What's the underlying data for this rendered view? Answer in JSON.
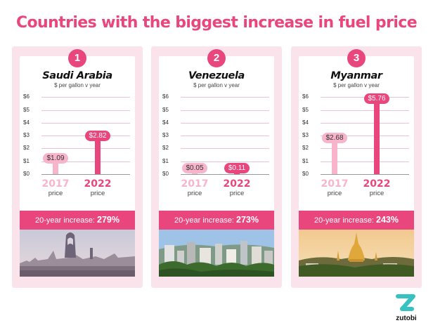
{
  "title": "Countries with the biggest increase in fuel price",
  "unit_label": "$ per gallon v year",
  "price_label": "price",
  "increase_label": "20-year increase:",
  "brand": "zutobi",
  "colors": {
    "accent": "#e8467c",
    "light_pink": "#f7b4cb",
    "card_bg": "#fbe3ec"
  },
  "chart_data": [
    {
      "type": "bar",
      "rank": "1",
      "title": "Saudi Arabia",
      "ylabel": "$ per gallon v year",
      "categories": [
        "2017",
        "2022"
      ],
      "values": [
        1.09,
        2.82
      ],
      "value_labels": [
        "$1.09",
        "$2.82"
      ],
      "ylim": [
        0,
        6
      ],
      "yticks": [
        "$0",
        "$1",
        "$2",
        "$3",
        "$4",
        "$5",
        "$6"
      ],
      "increase": "279%",
      "grid": true
    },
    {
      "type": "bar",
      "rank": "2",
      "title": "Venezuela",
      "ylabel": "$ per gallon v year",
      "categories": [
        "2017",
        "2022"
      ],
      "values": [
        0.05,
        0.11
      ],
      "value_labels": [
        "$0.05",
        "$0.11"
      ],
      "ylim": [
        0,
        6
      ],
      "yticks": [
        "$0",
        "$1",
        "$2",
        "$3",
        "$4",
        "$5",
        "$6"
      ],
      "increase": "273%",
      "grid": true
    },
    {
      "type": "bar",
      "rank": "3",
      "title": "Myanmar",
      "ylabel": "$ per gallon v year",
      "categories": [
        "2017",
        "2022"
      ],
      "values": [
        2.68,
        5.76
      ],
      "value_labels": [
        "$2.68",
        "$5.76"
      ],
      "ylim": [
        0,
        6
      ],
      "yticks": [
        "$0",
        "$1",
        "$2",
        "$3",
        "$4",
        "$5",
        "$6"
      ],
      "increase": "243%",
      "grid": true
    }
  ]
}
